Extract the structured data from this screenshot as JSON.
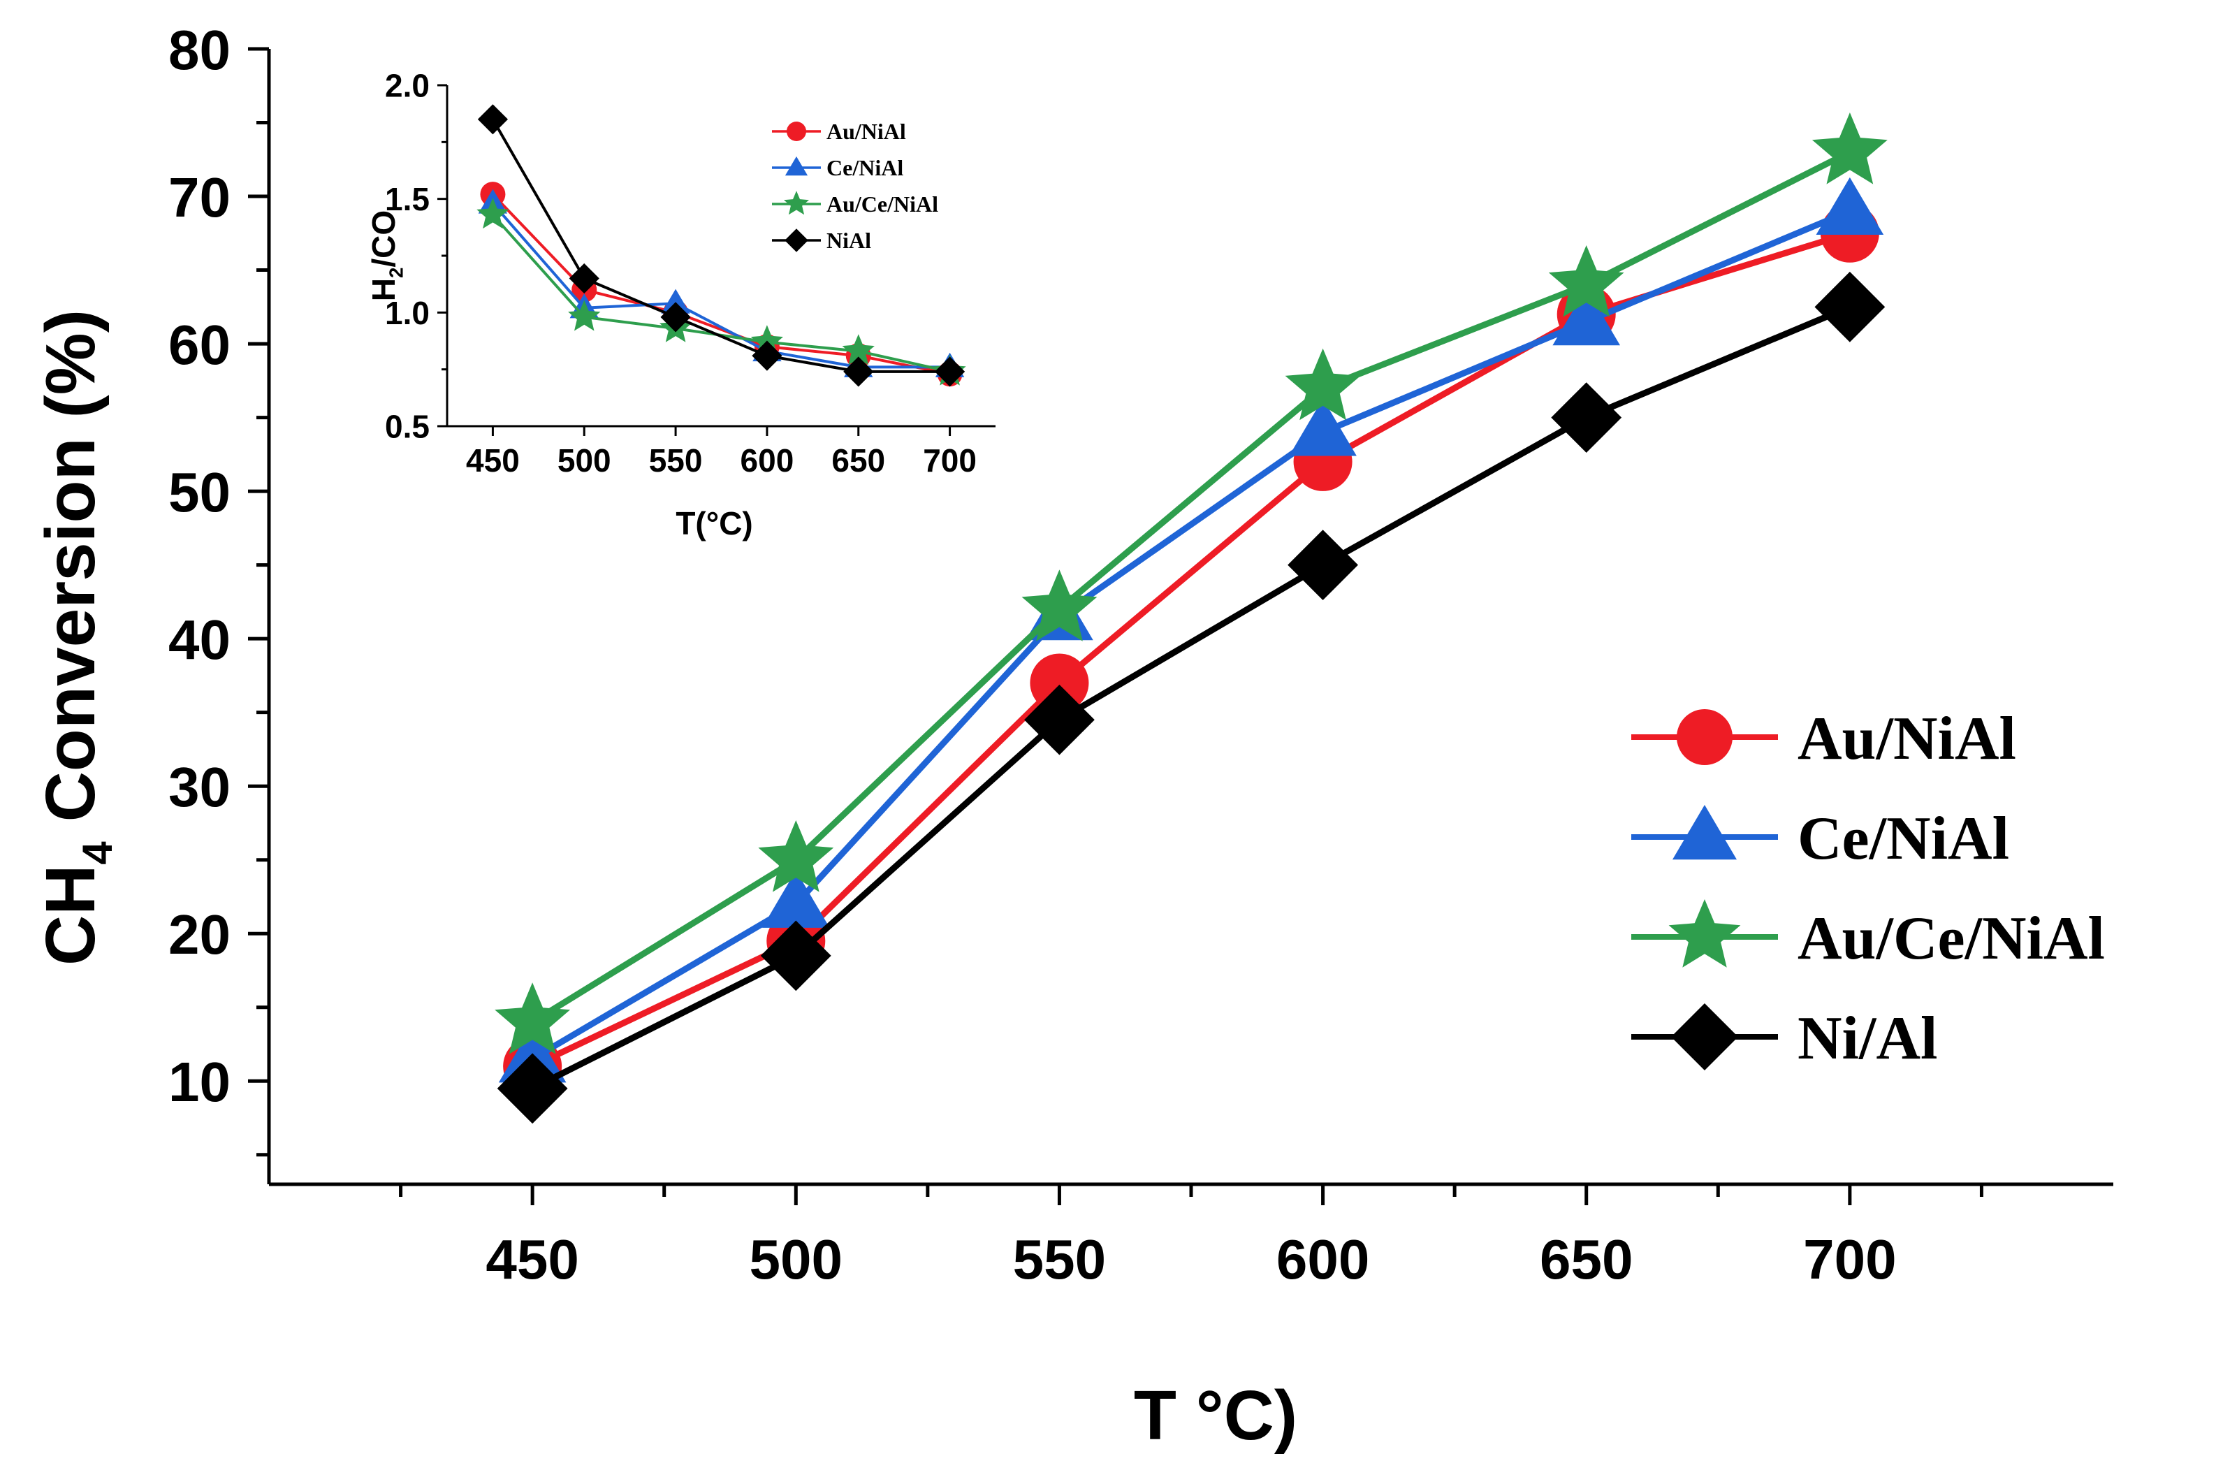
{
  "chart_data": [
    {
      "id": "main",
      "type": "line",
      "title": "",
      "xlabel": "T °C)",
      "ylabel_main": "CH",
      "ylabel_sub": "4",
      "ylabel_rest": " Conversion (%)",
      "xlim": [
        400,
        750
      ],
      "ylim": [
        3,
        80
      ],
      "x": [
        450,
        500,
        550,
        600,
        650,
        700
      ],
      "xticks": [
        "450",
        "500",
        "550",
        "600",
        "650",
        "700"
      ],
      "yticks": [
        "10",
        "20",
        "30",
        "40",
        "50",
        "60",
        "70",
        "80"
      ],
      "legend_position": "right",
      "series": [
        {
          "name": "Au/NiAl",
          "color": "#ee1c25",
          "marker": "circle",
          "values": [
            11.0,
            19.5,
            37.0,
            52.0,
            62.0,
            67.5
          ]
        },
        {
          "name": "Ce/NiAl",
          "color": "#1f64d6",
          "marker": "triangle",
          "values": [
            11.5,
            22.0,
            41.5,
            54.0,
            61.5,
            69.0
          ]
        },
        {
          "name": "Au/Ce/NiAl",
          "color": "#2e9e4d",
          "marker": "star",
          "values": [
            14.0,
            25.0,
            42.0,
            57.0,
            64.0,
            73.0
          ]
        },
        {
          "name": "Ni/Al",
          "color": "#000000",
          "marker": "diamond",
          "values": [
            9.5,
            18.5,
            34.5,
            45.0,
            55.0,
            62.5
          ]
        }
      ]
    },
    {
      "id": "inset",
      "type": "line",
      "title": "",
      "xlabel": "T(°C)",
      "ylabel_main": "H",
      "ylabel_sub": "2",
      "ylabel_rest": "/CO",
      "xlim": [
        425,
        725
      ],
      "ylim": [
        0.5,
        2.0
      ],
      "x": [
        450,
        500,
        550,
        600,
        650,
        700
      ],
      "xticks": [
        "450",
        "500",
        "550",
        "600",
        "650",
        "700"
      ],
      "yticks": [
        "0.5",
        "1.0",
        "1.5",
        "2.0"
      ],
      "legend_position": "top-right",
      "series": [
        {
          "name": "Au/NiAl",
          "color": "#ee1c25",
          "marker": "circle",
          "values": [
            1.52,
            1.1,
            1.0,
            0.85,
            0.81,
            0.73
          ]
        },
        {
          "name": "Ce/NiAl",
          "color": "#1f64d6",
          "marker": "triangle",
          "values": [
            1.48,
            1.02,
            1.04,
            0.83,
            0.76,
            0.76
          ]
        },
        {
          "name": "Au/Ce/NiAl",
          "color": "#2e9e4d",
          "marker": "star",
          "values": [
            1.43,
            0.98,
            0.93,
            0.87,
            0.83,
            0.74
          ]
        },
        {
          "name": "NiAl",
          "color": "#000000",
          "marker": "diamond",
          "values": [
            1.85,
            1.15,
            0.98,
            0.81,
            0.74,
            0.74
          ]
        }
      ]
    }
  ]
}
